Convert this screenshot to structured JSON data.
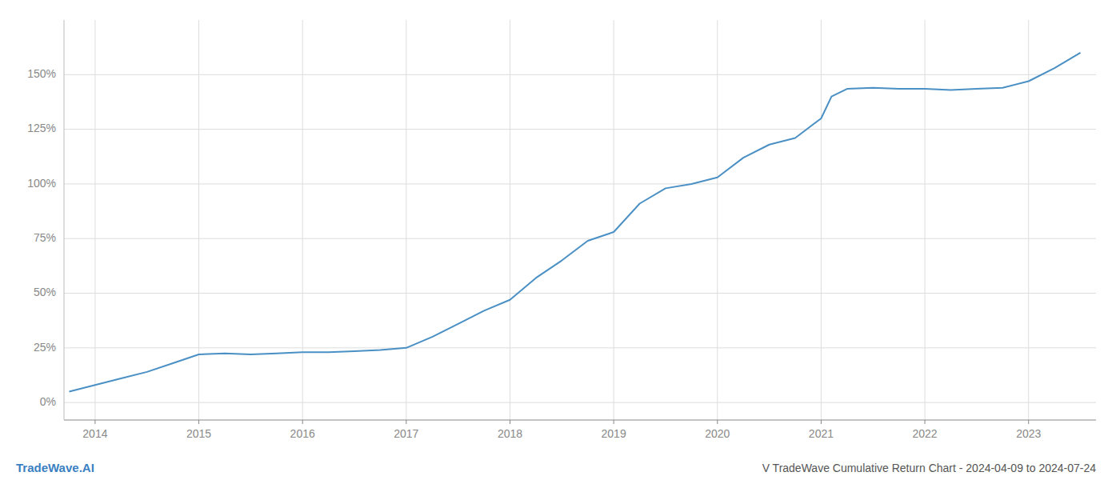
{
  "chart_data": {
    "type": "line",
    "title": "V TradeWave Cumulative Return Chart - 2024-04-09 to 2024-07-24",
    "annotations": [
      "TradeWave.AI"
    ],
    "color": "#4a90c4",
    "grid": true,
    "x": [
      2013.75,
      2014.0,
      2014.25,
      2014.5,
      2014.75,
      2015.0,
      2015.25,
      2015.5,
      2015.75,
      2016.0,
      2016.25,
      2016.5,
      2016.75,
      2017.0,
      2017.25,
      2017.5,
      2017.75,
      2018.0,
      2018.25,
      2018.5,
      2018.75,
      2019.0,
      2019.25,
      2019.5,
      2019.75,
      2020.0,
      2020.25,
      2020.5,
      2020.75,
      2021.0,
      2021.1,
      2021.25,
      2021.5,
      2021.75,
      2022.0,
      2022.25,
      2022.5,
      2022.75,
      2023.0,
      2023.25,
      2023.5
    ],
    "values": [
      5.0,
      8.0,
      11.0,
      14.0,
      18.0,
      22.0,
      22.5,
      22.0,
      22.5,
      23.0,
      23.0,
      23.5,
      24.0,
      25.0,
      30.0,
      36.0,
      42.0,
      47.0,
      57.0,
      65.0,
      74.0,
      78.0,
      91.0,
      98.0,
      100.0,
      103.0,
      112.0,
      118.0,
      121.0,
      130.0,
      140.0,
      143.5,
      144.0,
      143.5,
      143.5,
      143.0,
      143.5,
      144.0,
      147.0,
      153.0,
      160.0
    ],
    "xlim": [
      2013.7,
      2023.65
    ],
    "xticks": [
      2014,
      2015,
      2016,
      2017,
      2018,
      2019,
      2020,
      2021,
      2022,
      2023
    ],
    "ylim": [
      -8,
      175
    ],
    "yticks": [
      {
        "value": 0,
        "label": "0%"
      },
      {
        "value": 25,
        "label": "25%"
      },
      {
        "value": 50,
        "label": "50%"
      },
      {
        "value": 75,
        "label": "75%"
      },
      {
        "value": 100,
        "label": "100%"
      },
      {
        "value": 125,
        "label": "125%"
      },
      {
        "value": 150,
        "label": "150%"
      }
    ]
  }
}
